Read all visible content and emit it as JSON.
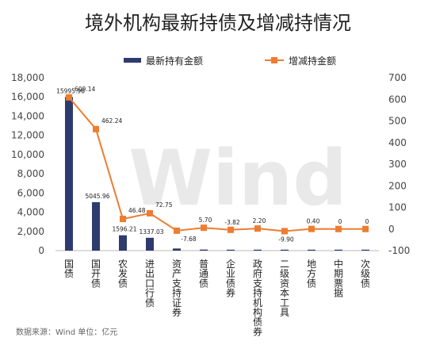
{
  "chart_data": {
    "type": "bar+line",
    "title": "境外机构最新持债及增减持情况",
    "categories": [
      "国债",
      "国开债",
      "农发债",
      "进出口行债",
      "资产支持证券",
      "普通债",
      "企业债券",
      "政府支持机构债券",
      "二级资本工具",
      "地方债",
      "中期票据",
      "次级债"
    ],
    "series": [
      {
        "name": "最新持有金额",
        "type": "bar",
        "axis": "left",
        "color": "#2e3b6e",
        "values": [
          15995.96,
          5045.96,
          1596.21,
          1337.03,
          220,
          110,
          60,
          40,
          15,
          8,
          3,
          0
        ],
        "labels": [
          "15995.96",
          "5045.96",
          "1596.21",
          "1337.03",
          "",
          "",
          "",
          "",
          "",
          "",
          "",
          ""
        ]
      },
      {
        "name": "增减持金额",
        "type": "line",
        "axis": "right",
        "color": "#ed7d31",
        "values": [
          609.14,
          462.24,
          46.48,
          72.75,
          -7.68,
          5.7,
          -3.82,
          2.2,
          -9.9,
          0.4,
          0,
          0
        ],
        "labels": [
          "609.14",
          "462.24",
          "46.48",
          "72.75",
          "-7.68",
          "5.70",
          "-3.82",
          "2.20",
          "-9.90",
          "0.40",
          "0",
          "0"
        ]
      }
    ],
    "y_left": {
      "min": 0,
      "max": 18000,
      "step": 2000,
      "ticks": [
        "0",
        "2,000",
        "4,000",
        "6,000",
        "8,000",
        "10,000",
        "12,000",
        "14,000",
        "16,000",
        "18,000"
      ]
    },
    "y_right": {
      "min": -100,
      "max": 700,
      "step": 100,
      "ticks": [
        "-100",
        "0",
        "100",
        "200",
        "300",
        "400",
        "500",
        "600",
        "700"
      ]
    },
    "legend_position": "top",
    "grid": false
  },
  "watermark": "Wind",
  "source_note": "数据来源：Wind  单位：亿元"
}
